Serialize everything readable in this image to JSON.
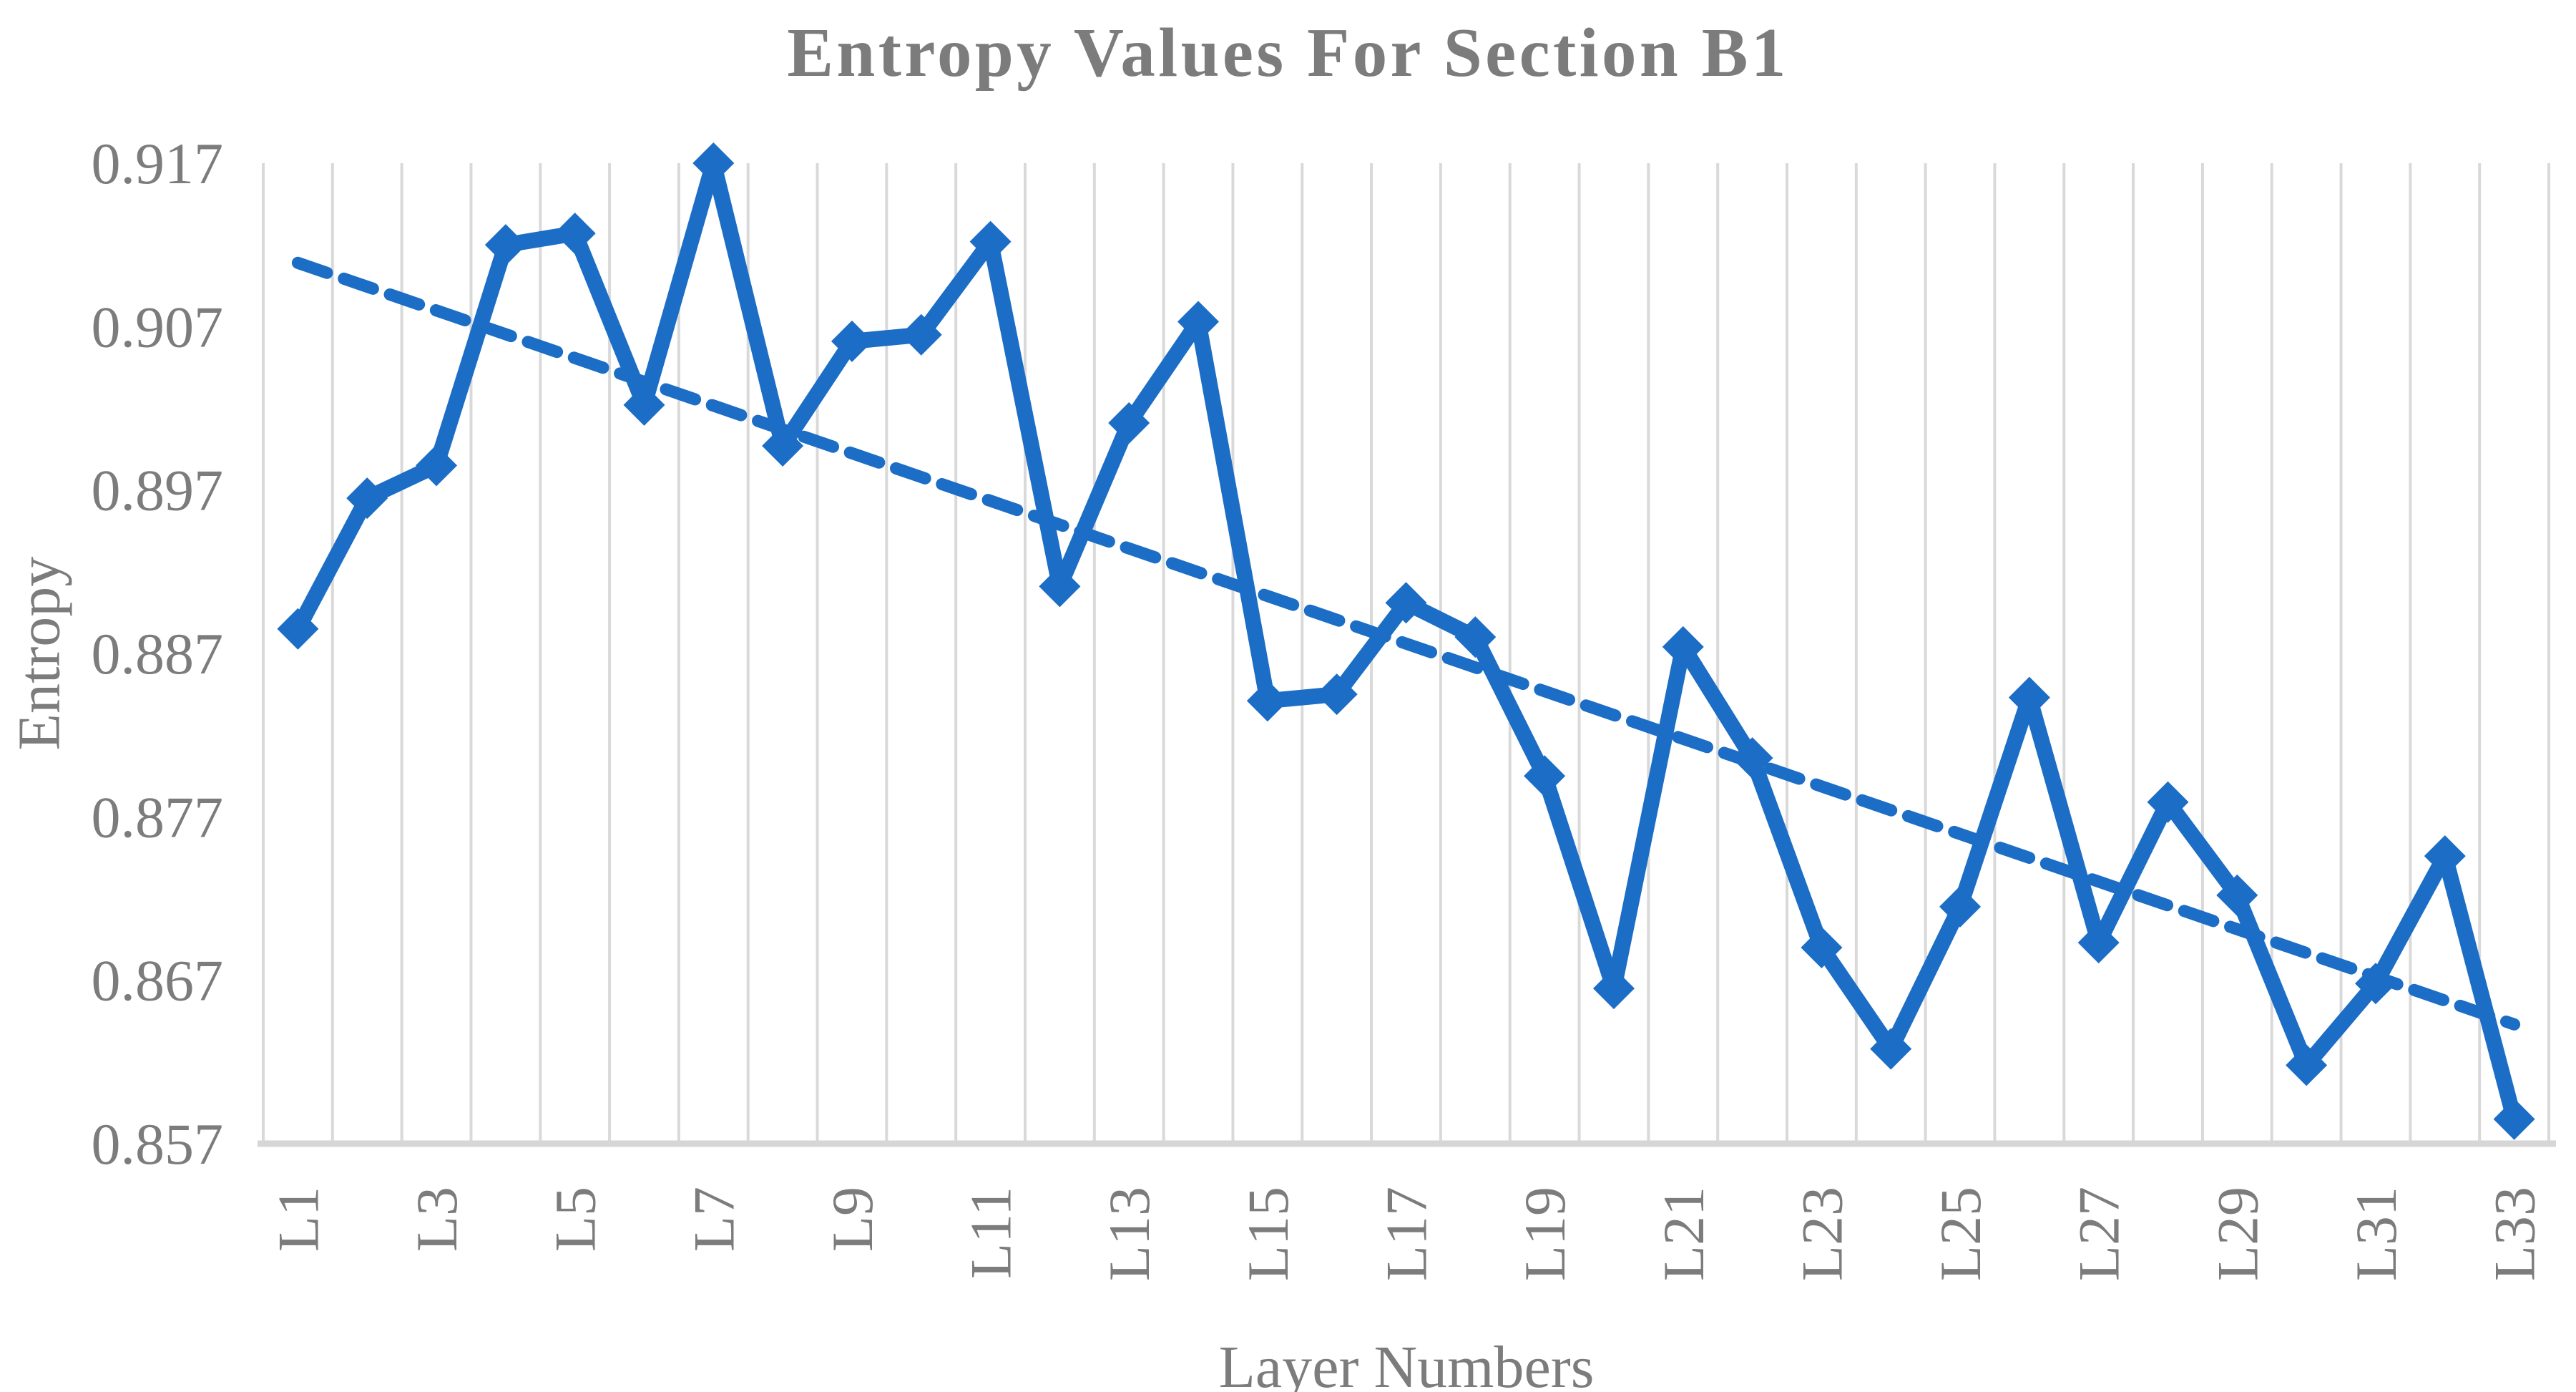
{
  "colors": {
    "series": "#1C6DC5",
    "grid": "#D9D9D9",
    "axis_line": "#D6D6D6",
    "text": "#7C7C7C"
  },
  "chart_data": {
    "type": "line",
    "title": "Entropy Values For Section B1",
    "xlabel": "Layer Numbers",
    "ylabel": "Entropy",
    "categories": [
      "L1",
      "L2",
      "L3",
      "L4",
      "L5",
      "L6",
      "L7",
      "L8",
      "L9",
      "L10",
      "L11",
      "L12",
      "L13",
      "L14",
      "L15",
      "L16",
      "L17",
      "L18",
      "L19",
      "L20",
      "L21",
      "L22",
      "L23",
      "L24",
      "L25",
      "L26",
      "L27",
      "L28",
      "L29",
      "L30",
      "L31",
      "L32",
      "L33"
    ],
    "values": [
      0.8885,
      0.8965,
      0.8985,
      0.912,
      0.9127,
      0.9022,
      0.917,
      0.8997,
      0.9061,
      0.9065,
      0.9122,
      0.8911,
      0.9011,
      0.9073,
      0.8841,
      0.8845,
      0.8901,
      0.888,
      0.8795,
      0.8665,
      0.8874,
      0.8806,
      0.869,
      0.8628,
      0.8715,
      0.8843,
      0.8693,
      0.8779,
      0.8722,
      0.8618,
      0.8668,
      0.8746,
      0.8585
    ],
    "x_ticks_shown": [
      "L1",
      "L3",
      "L5",
      "L7",
      "L9",
      "L11",
      "L13",
      "L15",
      "L17",
      "L19",
      "L21",
      "L23",
      "L25",
      "L27",
      "L29",
      "L31",
      "L33"
    ],
    "y_ticks": [
      "0.917",
      "0.907",
      "0.897",
      "0.887",
      "0.877",
      "0.867",
      "0.857"
    ],
    "ylim": [
      0.857,
      0.917
    ],
    "grid": "vertical-only",
    "legend": "none",
    "marker": "diamond",
    "series_color": "#1C6DC5",
    "trendline": {
      "style": "dashed",
      "color": "#1C6DC5",
      "start": 0.9109,
      "end": 0.8643
    }
  }
}
